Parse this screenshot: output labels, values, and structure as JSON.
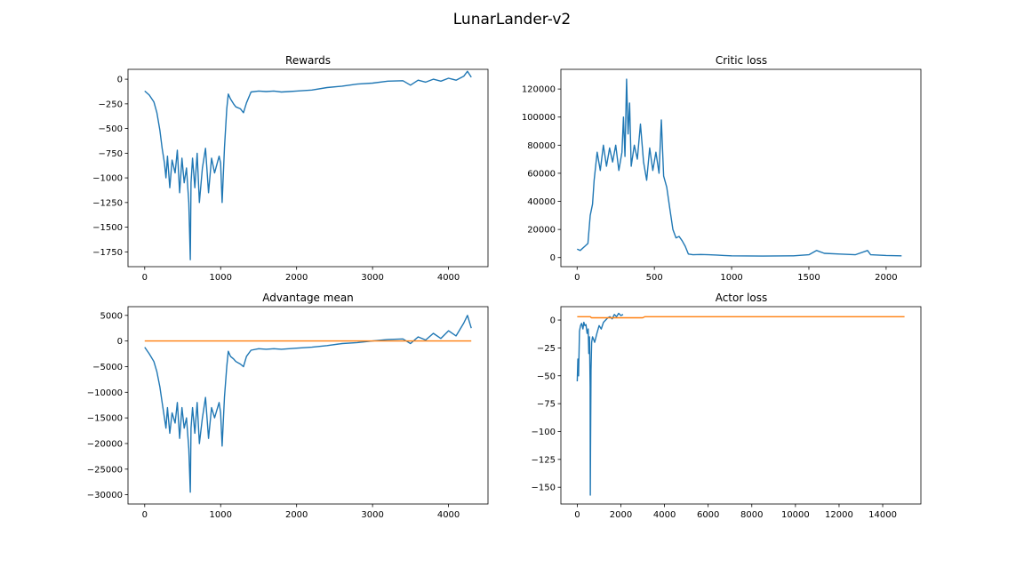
{
  "suptitle": "LunarLander-v2",
  "colors": {
    "series_blue": "#1f77b4",
    "series_orange": "#ff7f0e"
  },
  "chart_data": [
    {
      "type": "line",
      "title": "Rewards",
      "xlabel": "",
      "ylabel": "",
      "xlim": [
        -220,
        4520
      ],
      "ylim": [
        -1900,
        100
      ],
      "xticks": [
        0,
        1000,
        2000,
        3000,
        4000
      ],
      "xtick_labels": [
        "0",
        "1000",
        "2000",
        "3000",
        "4000"
      ],
      "yticks": [
        0,
        -250,
        -500,
        -750,
        -1000,
        -1250,
        -1500,
        -1750
      ],
      "ytick_labels": [
        "0",
        "−250",
        "−500",
        "−750",
        "−1000",
        "−1250",
        "−1500",
        "−1750"
      ],
      "grid": false,
      "series": [
        {
          "color": "#1f77b4",
          "x": [
            0,
            60,
            120,
            160,
            200,
            230,
            260,
            280,
            300,
            330,
            360,
            400,
            430,
            460,
            490,
            520,
            550,
            580,
            600,
            610,
            630,
            660,
            690,
            720,
            760,
            800,
            840,
            880,
            920,
            980,
            1000,
            1020,
            1050,
            1080,
            1100,
            1130,
            1170,
            1200,
            1260,
            1300,
            1340,
            1400,
            1500,
            1600,
            1700,
            1800,
            1900,
            2000,
            2200,
            2400,
            2600,
            2800,
            3000,
            3200,
            3400,
            3500,
            3600,
            3700,
            3800,
            3900,
            4000,
            4100,
            4200,
            4250,
            4300
          ],
          "y": [
            -120,
            -160,
            -230,
            -340,
            -520,
            -700,
            -850,
            -1000,
            -780,
            -1100,
            -820,
            -950,
            -720,
            -1150,
            -800,
            -1050,
            -900,
            -1250,
            -1830,
            -1050,
            -800,
            -1100,
            -750,
            -1250,
            -900,
            -700,
            -1150,
            -800,
            -950,
            -780,
            -850,
            -1250,
            -700,
            -300,
            -150,
            -200,
            -250,
            -280,
            -300,
            -340,
            -240,
            -130,
            -120,
            -125,
            -120,
            -130,
            -125,
            -120,
            -110,
            -85,
            -70,
            -50,
            -40,
            -20,
            -15,
            -60,
            -10,
            -30,
            0,
            -20,
            10,
            -10,
            30,
            80,
            20
          ]
        }
      ]
    },
    {
      "type": "line",
      "title": "Critic loss",
      "xlabel": "",
      "ylabel": "",
      "xlim": [
        -105,
        2225
      ],
      "ylim": [
        -6500,
        134000
      ],
      "xticks": [
        0,
        500,
        1000,
        1500,
        2000
      ],
      "xtick_labels": [
        "0",
        "500",
        "1000",
        "1500",
        "2000"
      ],
      "yticks": [
        0,
        20000,
        40000,
        60000,
        80000,
        100000,
        120000
      ],
      "ytick_labels": [
        "0",
        "20000",
        "40000",
        "60000",
        "80000",
        "100000",
        "120000"
      ],
      "grid": false,
      "series": [
        {
          "color": "#1f77b4",
          "x": [
            0,
            20,
            50,
            70,
            85,
            100,
            110,
            120,
            130,
            150,
            170,
            190,
            210,
            230,
            250,
            270,
            290,
            300,
            310,
            320,
            330,
            340,
            350,
            370,
            390,
            410,
            430,
            450,
            470,
            490,
            510,
            530,
            545,
            560,
            580,
            600,
            620,
            640,
            660,
            680,
            700,
            720,
            750,
            800,
            850,
            900,
            950,
            1000,
            1200,
            1400,
            1500,
            1550,
            1600,
            1700,
            1800,
            1880,
            1900,
            2000,
            2100
          ],
          "y": [
            6000,
            5000,
            8000,
            10000,
            30000,
            38000,
            55000,
            65000,
            75000,
            62000,
            80000,
            65000,
            78000,
            68000,
            80000,
            62000,
            75000,
            100000,
            72000,
            127000,
            88000,
            110000,
            65000,
            80000,
            70000,
            95000,
            68000,
            55000,
            78000,
            62000,
            75000,
            60000,
            98000,
            58000,
            50000,
            35000,
            20000,
            14000,
            15000,
            12000,
            8000,
            2500,
            2000,
            2200,
            2000,
            1800,
            1500,
            1200,
            1000,
            1200,
            2000,
            5000,
            3000,
            2500,
            2000,
            5000,
            2000,
            1500,
            1200
          ]
        }
      ]
    },
    {
      "type": "line",
      "title": "Advantage mean",
      "xlabel": "",
      "ylabel": "",
      "xlim": [
        -220,
        4520
      ],
      "ylim": [
        -31800,
        6700
      ],
      "xticks": [
        0,
        1000,
        2000,
        3000,
        4000
      ],
      "xtick_labels": [
        "0",
        "1000",
        "2000",
        "3000",
        "4000"
      ],
      "yticks": [
        5000,
        0,
        -5000,
        -10000,
        -15000,
        -20000,
        -25000,
        -30000
      ],
      "ytick_labels": [
        "5000",
        "0",
        "−5000",
        "−10000",
        "−15000",
        "−20000",
        "−25000",
        "−30000"
      ],
      "grid": false,
      "series": [
        {
          "color": "#1f77b4",
          "x": [
            0,
            60,
            120,
            160,
            200,
            230,
            260,
            280,
            300,
            330,
            360,
            400,
            430,
            460,
            490,
            520,
            550,
            580,
            600,
            610,
            630,
            660,
            690,
            720,
            760,
            800,
            840,
            880,
            920,
            980,
            1000,
            1020,
            1050,
            1080,
            1100,
            1130,
            1170,
            1200,
            1260,
            1300,
            1340,
            1400,
            1500,
            1600,
            1700,
            1800,
            1900,
            2000,
            2200,
            2400,
            2600,
            2800,
            3000,
            3200,
            3400,
            3500,
            3600,
            3700,
            3800,
            3900,
            4000,
            4100,
            4200,
            4250,
            4300
          ],
          "y": [
            -1200,
            -2500,
            -4000,
            -6000,
            -9000,
            -12000,
            -15000,
            -17000,
            -13000,
            -18000,
            -14000,
            -16000,
            -12000,
            -19000,
            -13000,
            -17000,
            -15000,
            -21000,
            -29500,
            -17000,
            -13000,
            -18000,
            -12000,
            -20000,
            -15000,
            -11000,
            -19000,
            -13000,
            -15000,
            -12000,
            -14000,
            -20500,
            -11000,
            -5000,
            -2000,
            -3000,
            -3500,
            -4000,
            -4500,
            -5000,
            -3000,
            -1800,
            -1500,
            -1600,
            -1500,
            -1600,
            -1500,
            -1400,
            -1200,
            -900,
            -500,
            -300,
            0,
            300,
            400,
            -500,
            800,
            200,
            1500,
            500,
            2000,
            1000,
            3500,
            5000,
            2500
          ]
        },
        {
          "color": "#ff7f0e",
          "x": [
            0,
            4300
          ],
          "y": [
            0,
            0
          ]
        }
      ]
    },
    {
      "type": "line",
      "title": "Actor loss",
      "xlabel": "",
      "ylabel": "",
      "xlim": [
        -750,
        15750
      ],
      "ylim": [
        -165,
        12
      ],
      "xticks": [
        0,
        2000,
        4000,
        6000,
        8000,
        10000,
        12000,
        14000
      ],
      "xtick_labels": [
        "0",
        "2000",
        "4000",
        "6000",
        "8000",
        "10000",
        "12000",
        "14000"
      ],
      "yticks": [
        0,
        -25,
        -50,
        -75,
        -100,
        -125,
        -150
      ],
      "ytick_labels": [
        "0",
        "−25",
        "−50",
        "−75",
        "−100",
        "−125",
        "−150"
      ],
      "grid": false,
      "series": [
        {
          "color": "#1f77b4",
          "x": [
            0,
            30,
            60,
            100,
            150,
            200,
            260,
            300,
            350,
            400,
            450,
            500,
            530,
            560,
            590,
            600,
            610,
            630,
            660,
            700,
            760,
            800,
            900,
            1000,
            1100,
            1200,
            1300,
            1400,
            1500,
            1600,
            1700,
            1800,
            1900,
            2000,
            2100
          ],
          "y": [
            -55,
            -35,
            -50,
            -10,
            -5,
            -3,
            -8,
            -2,
            -5,
            -4,
            -12,
            -8,
            -30,
            -15,
            -60,
            -157,
            -110,
            -45,
            -20,
            -15,
            -18,
            -20,
            -12,
            -5,
            -8,
            -2,
            0,
            2,
            3,
            1,
            5,
            3,
            6,
            4,
            5
          ]
        },
        {
          "color": "#ff7f0e",
          "x": [
            0,
            600,
            650,
            3000,
            3100,
            15000
          ],
          "y": [
            3,
            3,
            2,
            2,
            3,
            3
          ]
        }
      ]
    }
  ]
}
